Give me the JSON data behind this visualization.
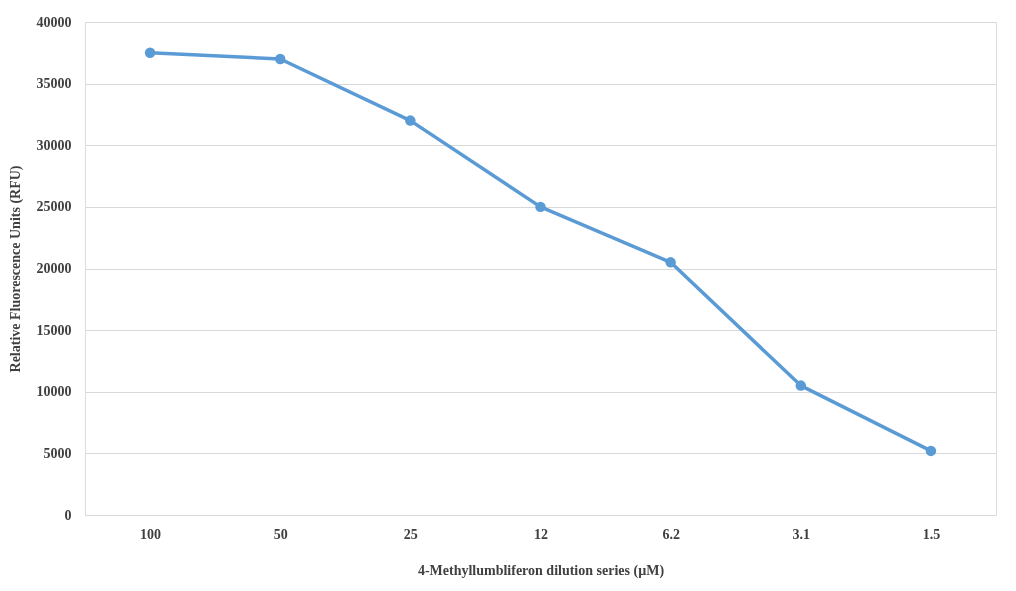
{
  "chart_data": {
    "type": "line",
    "xlabel": "4-Methyllumbliferon dilution series (µM)",
    "ylabel": "Relative Fluorescence Units (RFU)",
    "categories": [
      "100",
      "50",
      "25",
      "12",
      "6.2",
      "3.1",
      "1.5"
    ],
    "series": [
      {
        "color": "#5b9bd5",
        "values": [
          37500,
          37000,
          32000,
          25000,
          20500,
          10500,
          5200
        ]
      }
    ],
    "ylim": [
      0,
      40000
    ],
    "yticks": [
      0,
      5000,
      10000,
      15000,
      20000,
      25000,
      30000,
      35000,
      40000
    ],
    "grid": "y",
    "legend": false,
    "marker": "circle",
    "line_style": "solid"
  }
}
